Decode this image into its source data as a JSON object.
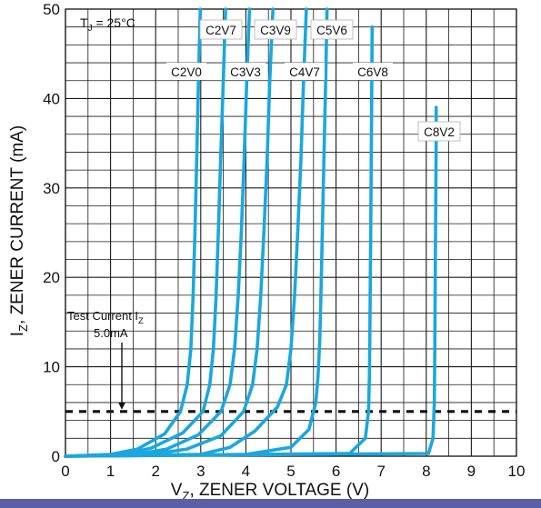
{
  "chart_data": {
    "type": "line",
    "xlabel": "V",
    "xlabel_sub": "Z",
    "xlabel_rest": ", ZENER VOLTAGE (V)",
    "ylabel": "I",
    "ylabel_sub": "Z",
    "ylabel_rest": ", ZENER CURRENT (mA)",
    "xlim": [
      0,
      10
    ],
    "ylim": [
      0,
      50
    ],
    "x_ticks": [
      "0",
      "1",
      "2",
      "3",
      "4",
      "5",
      "6",
      "7",
      "8",
      "9",
      "10"
    ],
    "y_ticks": [
      "0",
      "10",
      "20",
      "30",
      "40",
      "50"
    ],
    "grid": true,
    "temperature_note": {
      "prefix": "T",
      "sub": "J",
      "rest": " = 25°C"
    },
    "test_current": {
      "line1_prefix": "Test Current I",
      "line1_sub": "Z",
      "line2": "5.0mA",
      "value": 5.0,
      "marker_x": 1.25
    },
    "series_color": "#1aa7e0",
    "series": [
      {
        "name": "C2V0",
        "label_box": false,
        "x": [
          0,
          1.0,
          1.6,
          2.2,
          2.55,
          2.7,
          2.78,
          2.83,
          2.87,
          2.91,
          2.95,
          2.99
        ],
        "y": [
          0,
          0.2,
          0.8,
          2.5,
          5.0,
          8.0,
          12.0,
          18.0,
          25.0,
          33.0,
          42.0,
          50.0
        ]
      },
      {
        "name": "C2V7",
        "label_box": true,
        "x": [
          0,
          1.25,
          1.9,
          2.6,
          3.05,
          3.2,
          3.28,
          3.34,
          3.39,
          3.44,
          3.5,
          3.55
        ],
        "y": [
          0,
          0.2,
          0.9,
          2.6,
          5.0,
          8.0,
          12.0,
          18.0,
          25.0,
          33.0,
          42.0,
          50.0
        ]
      },
      {
        "name": "C3V3",
        "label_box": false,
        "x": [
          0,
          1.55,
          2.25,
          2.95,
          3.45,
          3.65,
          3.75,
          3.83,
          3.9,
          3.96,
          4.02,
          4.08
        ],
        "y": [
          0,
          0.2,
          0.8,
          2.4,
          5.0,
          8.0,
          12.0,
          18.0,
          25.0,
          33.0,
          42.0,
          50.0
        ]
      },
      {
        "name": "C3V9",
        "label_box": true,
        "x": [
          0,
          1.9,
          2.7,
          3.45,
          3.95,
          4.15,
          4.25,
          4.33,
          4.4,
          4.47,
          4.53,
          4.6
        ],
        "y": [
          0,
          0.2,
          0.8,
          2.3,
          5.0,
          8.0,
          12.0,
          18.0,
          25.0,
          33.0,
          42.0,
          50.0
        ]
      },
      {
        "name": "C4V7",
        "label_box": false,
        "x": [
          0,
          3.0,
          3.65,
          4.2,
          4.7,
          4.9,
          5.0,
          5.08,
          5.15,
          5.22,
          5.28,
          5.34
        ],
        "y": [
          0,
          0.2,
          1.0,
          2.8,
          5.5,
          8.0,
          12.0,
          18.0,
          25.0,
          33.0,
          42.0,
          50.0
        ]
      },
      {
        "name": "C5V6",
        "label_box": true,
        "x": [
          0,
          4.0,
          5.0,
          5.4,
          5.55,
          5.6,
          5.64,
          5.67,
          5.7,
          5.73,
          5.77,
          5.8
        ],
        "y": [
          0,
          0.2,
          1.0,
          3.0,
          6.0,
          9.0,
          13.0,
          19.0,
          26.0,
          33.0,
          42.0,
          50.0
        ]
      },
      {
        "name": "C6V8",
        "label_box": false,
        "x": [
          0,
          6.3,
          6.65,
          6.72,
          6.74,
          6.75,
          6.76,
          6.77,
          6.78,
          6.79,
          6.8
        ],
        "y": [
          0,
          0.3,
          2.0,
          5.0,
          9.0,
          14.0,
          20.0,
          26.0,
          33.0,
          40.0,
          48.0
        ]
      },
      {
        "name": "C8V2",
        "label_box": true,
        "x": [
          0,
          8.05,
          8.15,
          8.18,
          8.19,
          8.2,
          8.21,
          8.22,
          8.22
        ],
        "y": [
          0,
          0.3,
          2.0,
          6.0,
          12.0,
          20.0,
          28.0,
          35.0,
          39.0
        ]
      }
    ]
  }
}
